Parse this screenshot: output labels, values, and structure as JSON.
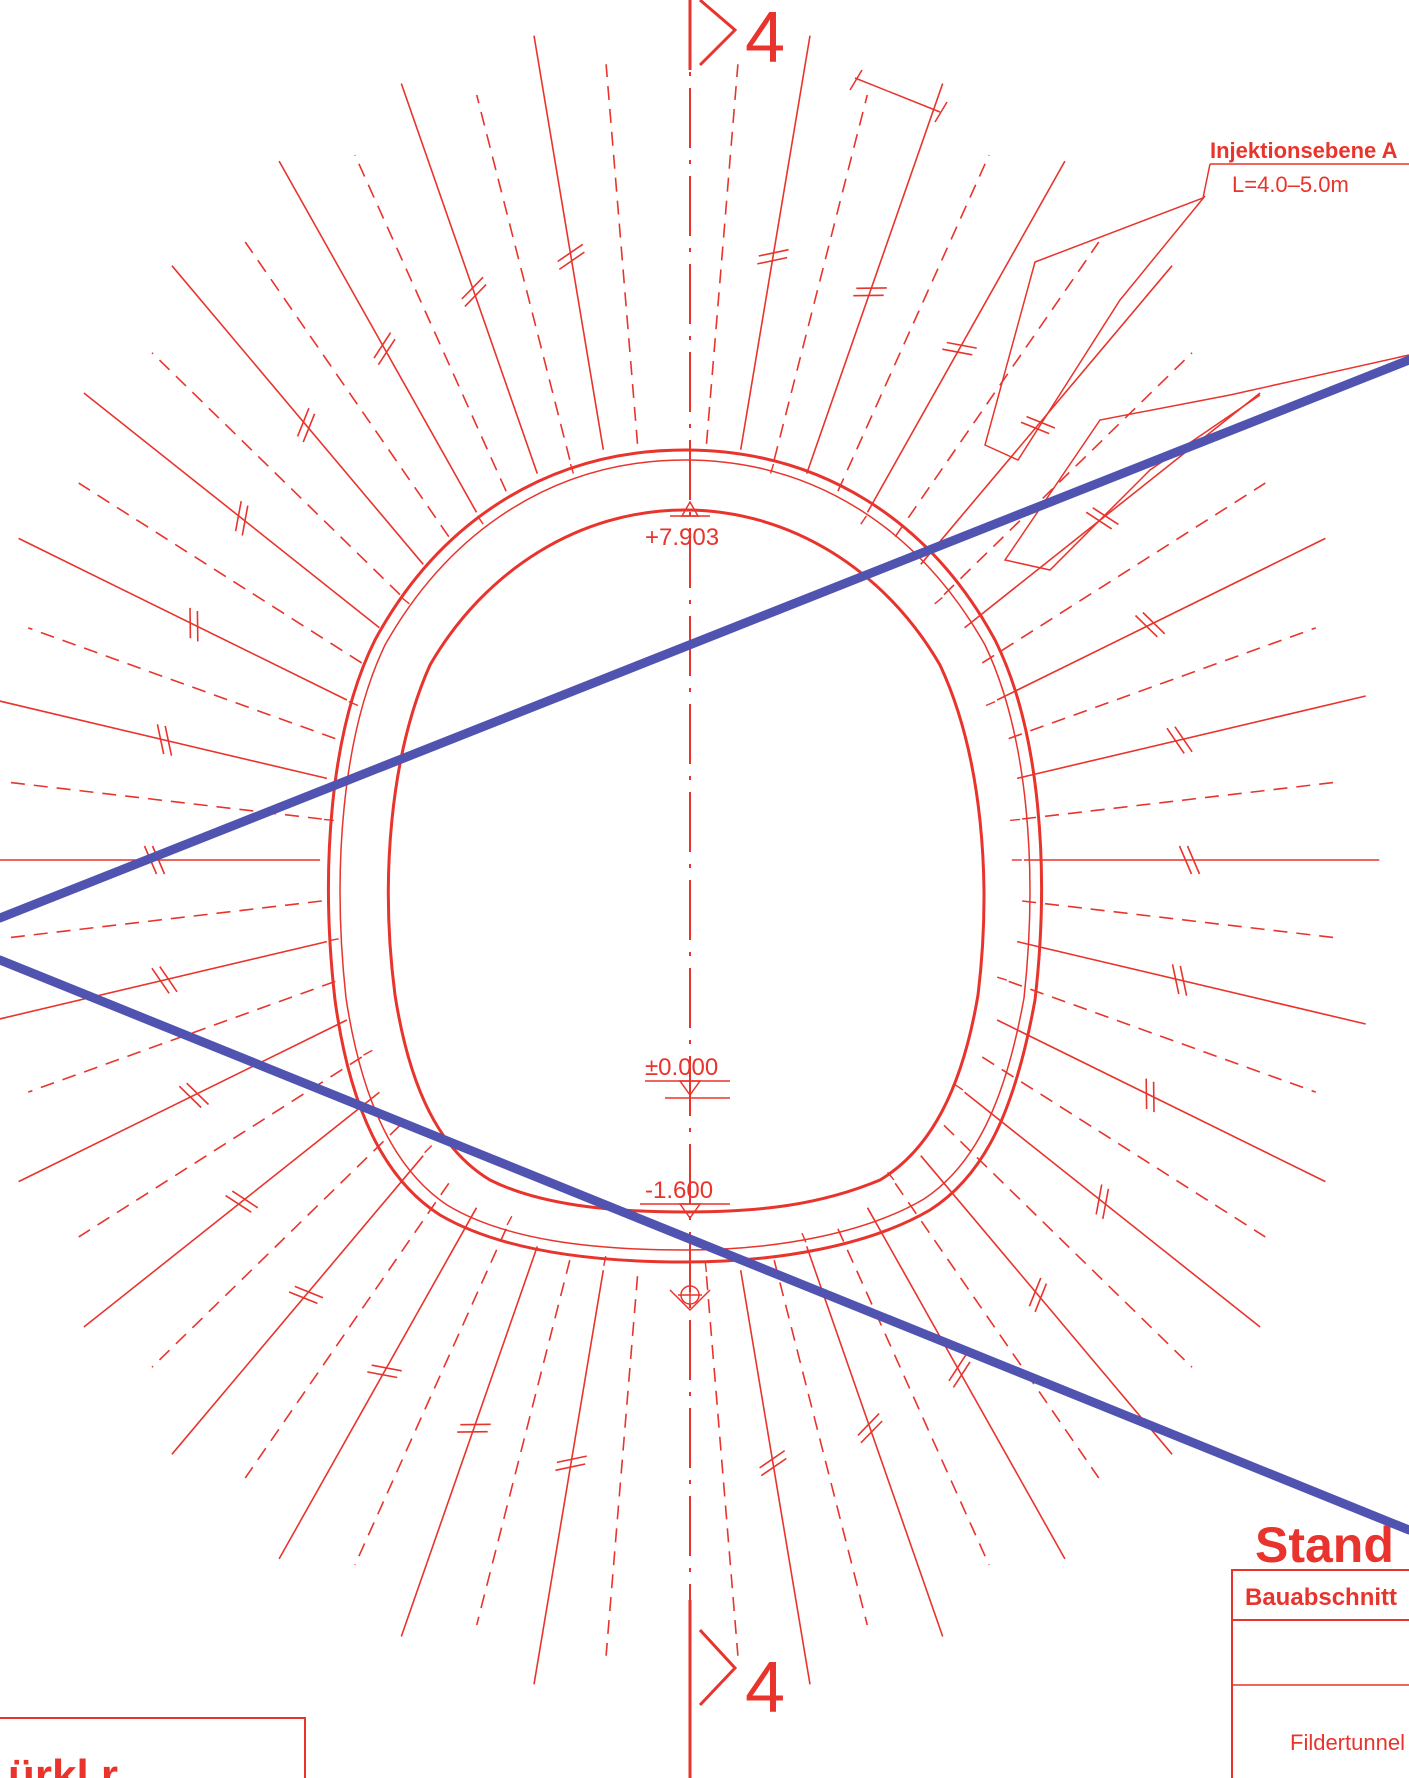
{
  "colors": {
    "drawing": "#e8342c",
    "overlay": "#5054b0",
    "background": "#ffffff"
  },
  "section_marker_label": "4",
  "injection": {
    "title": "Injektionsebene A",
    "length": "L=4.0–5.0m"
  },
  "elevations": {
    "crown": "+7.903",
    "datum": "±0.000",
    "invert": "-1.600"
  },
  "title_block": {
    "heading_fragment": "Stand",
    "section_label": "Bauabschnitt",
    "project_name": "Fildertunnel"
  },
  "legend_fragment": "ürkl r"
}
